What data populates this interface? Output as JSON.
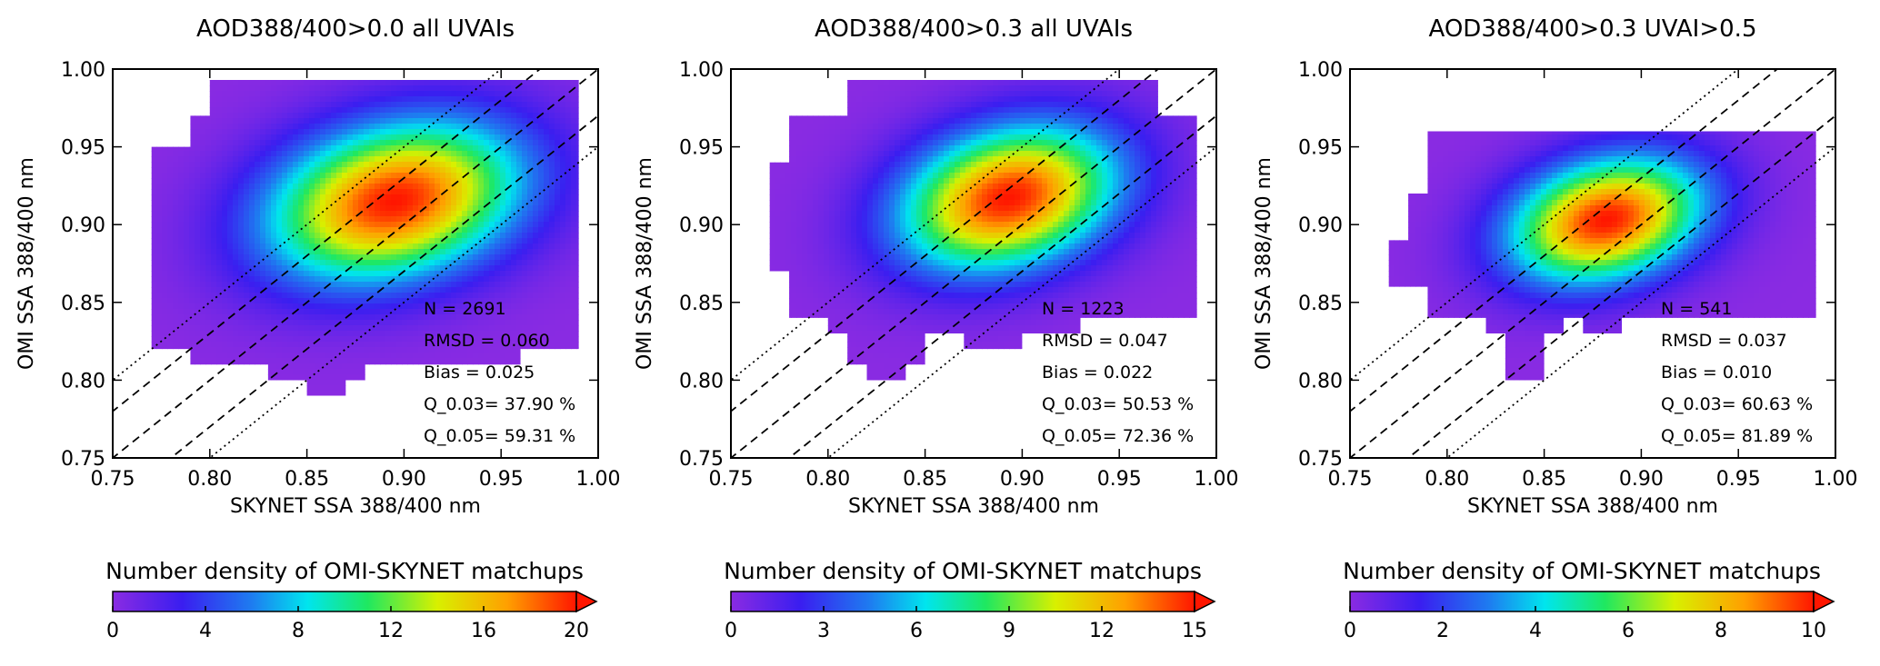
{
  "chart_data": [
    {
      "type": "heatmap",
      "title": "AOD388/400>0.0 all UVAIs",
      "xlabel": "SKYNET SSA 388/400 nm",
      "ylabel": "OMI SSA 388/400 nm",
      "xlim": [
        0.75,
        1.0
      ],
      "ylim": [
        0.75,
        1.0
      ],
      "xticks": [
        "0.75",
        "0.80",
        "0.85",
        "0.90",
        "0.95",
        "1.00"
      ],
      "yticks": [
        "0.75",
        "0.80",
        "0.85",
        "0.90",
        "0.95",
        "1.00"
      ],
      "peak": {
        "x": 0.895,
        "y": 0.915,
        "sx": 0.042,
        "sy": 0.033
      },
      "reference_lines": [
        "1:1",
        "±0.03",
        "±0.05"
      ],
      "stats": [
        "N =   2691",
        "RMSD = 0.060",
        "Bias = 0.025",
        "Q_0.03= 37.90 %",
        "Q_0.05= 59.31 %"
      ],
      "colorbar": {
        "label": "Number density of OMI-SKYNET matchups",
        "ticks": [
          "0",
          "4",
          "8",
          "12",
          "16",
          "20"
        ],
        "range": [
          0,
          20
        ]
      }
    },
    {
      "type": "heatmap",
      "title": "AOD388/400>0.3 all UVAIs",
      "xlabel": "SKYNET SSA 388/400 nm",
      "ylabel": "OMI SSA 388/400 nm",
      "xlim": [
        0.75,
        1.0
      ],
      "ylim": [
        0.75,
        1.0
      ],
      "xticks": [
        "0.75",
        "0.80",
        "0.85",
        "0.90",
        "0.95",
        "1.00"
      ],
      "yticks": [
        "0.75",
        "0.80",
        "0.85",
        "0.90",
        "0.95",
        "1.00"
      ],
      "peak": {
        "x": 0.893,
        "y": 0.917,
        "sx": 0.036,
        "sy": 0.03
      },
      "reference_lines": [
        "1:1",
        "±0.03",
        "±0.05"
      ],
      "stats": [
        "N =   1223",
        "RMSD = 0.047",
        "Bias = 0.022",
        "Q_0.03= 50.53 %",
        "Q_0.05= 72.36 %"
      ],
      "colorbar": {
        "label": "Number density of OMI-SKYNET matchups",
        "ticks": [
          "0",
          "3",
          "6",
          "9",
          "12",
          "15"
        ],
        "range": [
          0,
          15
        ]
      }
    },
    {
      "type": "heatmap",
      "title": "AOD388/400>0.3 UVAI>0.5",
      "xlabel": "SKYNET SSA 388/400 nm",
      "ylabel": "OMI SSA 388/400 nm",
      "xlim": [
        0.75,
        1.0
      ],
      "ylim": [
        0.75,
        1.0
      ],
      "xticks": [
        "0.75",
        "0.80",
        "0.85",
        "0.90",
        "0.95",
        "1.00"
      ],
      "yticks": [
        "0.75",
        "0.80",
        "0.85",
        "0.90",
        "0.95",
        "1.00"
      ],
      "peak": {
        "x": 0.882,
        "y": 0.903,
        "sx": 0.032,
        "sy": 0.026
      },
      "reference_lines": [
        "1:1",
        "±0.03",
        "±0.05"
      ],
      "stats": [
        "N =   541",
        "RMSD = 0.037",
        "Bias = 0.010",
        "Q_0.03= 60.63 %",
        "Q_0.05= 81.89 %"
      ],
      "colorbar": {
        "label": "Number density of OMI-SKYNET matchups",
        "ticks": [
          "0",
          "2",
          "4",
          "6",
          "8",
          "10"
        ],
        "range": [
          0,
          10
        ]
      }
    }
  ]
}
